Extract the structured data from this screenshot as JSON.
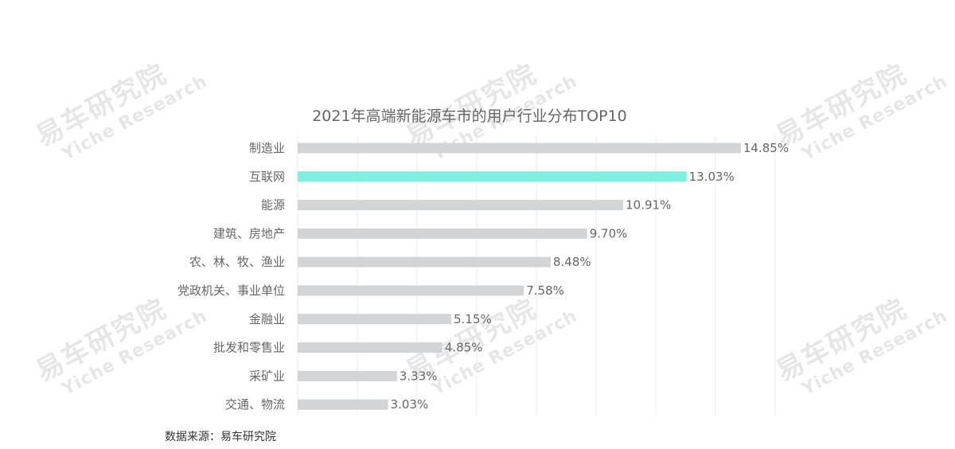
{
  "chart_data": {
    "type": "bar",
    "orientation": "horizontal",
    "title": "2021年高端新能源车市的用户行业分布TOP10",
    "categories": [
      "制造业",
      "互联网",
      "能源",
      "建筑、房地产",
      "农、林、牧、渔业",
      "党政机关、事业单位",
      "金融业",
      "批发和零售业",
      "采矿业",
      "交通、物流"
    ],
    "values": [
      14.85,
      13.03,
      10.91,
      9.7,
      8.48,
      7.58,
      5.15,
      4.85,
      3.33,
      3.03
    ],
    "value_labels": [
      "14.85%",
      "13.03%",
      "10.91%",
      "9.70%",
      "8.48%",
      "7.58%",
      "5.15%",
      "4.85%",
      "3.33%",
      "3.03%"
    ],
    "highlight_index": 1,
    "xlim": [
      0,
      16
    ],
    "grid": true,
    "colors": {
      "bar": "#d3d4d6",
      "highlight": "#7ef0df",
      "grid": "#ebebeb"
    }
  },
  "source_note": "数据来源：易车研究院",
  "watermark": {
    "cn": "易车研究院",
    "en": "Yiche Research"
  }
}
